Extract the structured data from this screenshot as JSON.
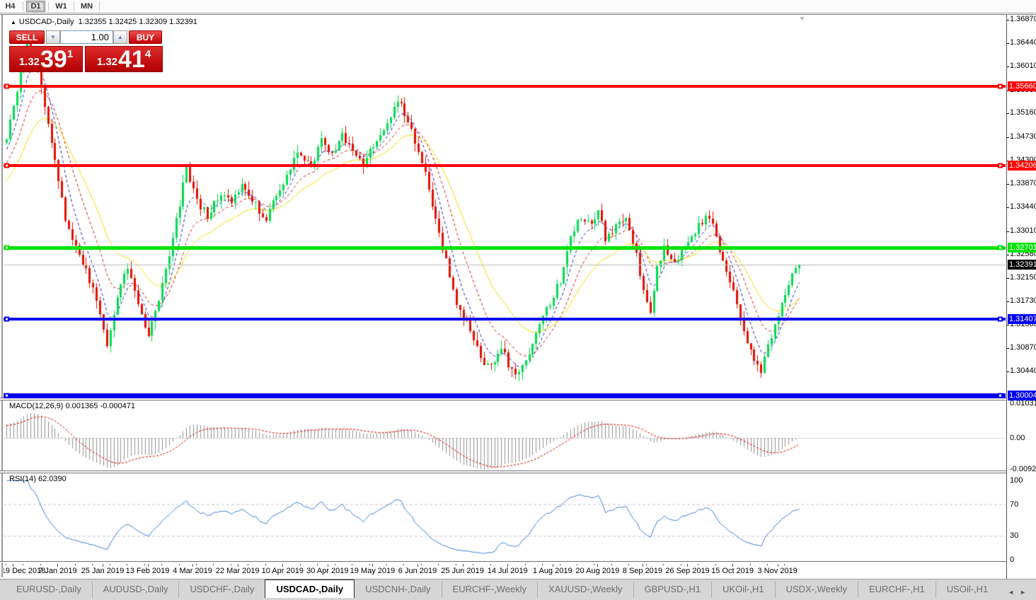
{
  "toolbar": {
    "timeframes": [
      {
        "label": "H4",
        "active": false
      },
      {
        "label": "D1",
        "active": true
      },
      {
        "label": "W1",
        "active": false
      },
      {
        "label": "MN",
        "active": false
      }
    ]
  },
  "window": {
    "title_arrow": "▲",
    "title": "USDCAD-,Daily",
    "ohlc_text": "1.32355 1.32425 1.32309 1.32391",
    "shift_marker": "▼"
  },
  "trade_panel": {
    "sell_label": "SELL",
    "buy_label": "BUY",
    "volume": "1.00",
    "spinner_down": "▼",
    "spinner_up": "▲",
    "sell_price_small": "1.32",
    "sell_price_big": "39",
    "sell_price_sup": "1",
    "buy_price_small": "1.32",
    "buy_price_big": "41",
    "buy_price_sup": "4"
  },
  "chart_data": {
    "type": "candlestick",
    "symbol": "USDCAD",
    "period": "Daily",
    "open": 1.32355,
    "high": 1.32425,
    "low": 1.32309,
    "close": 1.32391,
    "current_price": 1.32391,
    "candle_count": 230,
    "pre_candles": 30,
    "seed": 20191108,
    "noise": 0.0014,
    "wick": 0.0015,
    "bull_color": "#00DC50",
    "bear_color": "#E41000",
    "price_axis": {
      "range_top": 1.3696,
      "range_bottom": 1.29967,
      "ticks": [
        {
          "label": "1.36870",
          "v": 1.3687
        },
        {
          "label": "1.36440",
          "v": 1.3644
        },
        {
          "label": "1.36010",
          "v": 1.3601
        },
        {
          "label": "1.35580",
          "v": 1.3558
        },
        {
          "label": "1.35160",
          "v": 1.3516
        },
        {
          "label": "1.34730",
          "v": 1.3473
        },
        {
          "label": "1.34300",
          "v": 1.343
        },
        {
          "label": "1.33870",
          "v": 1.3387
        },
        {
          "label": "1.33440",
          "v": 1.3344
        },
        {
          "label": "1.33010",
          "v": 1.3301
        },
        {
          "label": "1.32580",
          "v": 1.3258
        },
        {
          "label": "1.32150",
          "v": 1.3215
        },
        {
          "label": "1.31730",
          "v": 1.3173
        },
        {
          "label": "1.31300",
          "v": 1.313
        },
        {
          "label": "1.30870",
          "v": 1.3087
        },
        {
          "label": "1.30440",
          "v": 1.3044
        }
      ]
    },
    "hlines": [
      {
        "label": "1.35660",
        "v": 1.3566,
        "color": "#FF0000",
        "w": 4
      },
      {
        "label": "1.34206",
        "v": 1.34206,
        "color": "#FF0000",
        "w": 4
      },
      {
        "label": "1.32701",
        "v": 1.32701,
        "color": "#00E400",
        "w": 5
      },
      {
        "label": "1.31407",
        "v": 1.31407,
        "color": "#0000F0",
        "w": 4
      },
      {
        "label": "1.30004",
        "v": 1.30004,
        "color": "#0000F0",
        "w": 7
      }
    ],
    "current_line": {
      "label": "1.32391",
      "v": 1.32391,
      "color": "#BDBDBD",
      "badge": "#000000"
    },
    "ma_lines": [
      {
        "period": 6,
        "color": "#2020C8",
        "dash": [
          4,
          3
        ]
      },
      {
        "period": 13,
        "color": "#D01818",
        "dash": [
          4,
          3
        ]
      },
      {
        "period": 24,
        "color": "#F2DC00",
        "dash": []
      }
    ],
    "macd": {
      "label": "MACD(12,26,9) 0.001365 -0.000471",
      "fast": 12,
      "slow": 26,
      "signal_period": 9,
      "bar_color": "#909090",
      "signal_color": "#E00000",
      "axis": [
        {
          "label": "0.010311",
          "v": 0.010311
        },
        {
          "label": "0.00",
          "v": 0
        },
        {
          "label": "-0.009203",
          "v": -0.009203
        }
      ]
    },
    "rsi": {
      "label": "RSI(14) 62.0390",
      "period": 14,
      "value": 62.039,
      "color": "#3A7EDC",
      "levels": [
        70,
        30
      ],
      "axis": [
        {
          "label": "100",
          "v": 100
        },
        {
          "label": "70",
          "v": 70
        },
        {
          "label": "30",
          "v": 30
        },
        {
          "label": "0",
          "v": 0
        }
      ]
    },
    "dates": [
      {
        "label": "19 Dec 2018",
        "i": 2
      },
      {
        "label": "7 Jan 2019",
        "i": 15
      },
      {
        "label": "25 Jan 2019",
        "i": 28
      },
      {
        "label": "13 Feb 2019",
        "i": 41
      },
      {
        "label": "4 Mar 2019",
        "i": 54
      },
      {
        "label": "22 Mar 2019",
        "i": 67
      },
      {
        "label": "10 Apr 2019",
        "i": 80
      },
      {
        "label": "30 Apr 2019",
        "i": 93
      },
      {
        "label": "19 May 2019",
        "i": 106
      },
      {
        "label": "6 Jun 2019",
        "i": 119
      },
      {
        "label": "25 Jun 2019",
        "i": 132
      },
      {
        "label": "14 Jul 2019",
        "i": 145
      },
      {
        "label": "1 Aug 2019",
        "i": 158
      },
      {
        "label": "20 Aug 2019",
        "i": 171
      },
      {
        "label": "8 Sep 2019",
        "i": 184
      },
      {
        "label": "26 Sep 2019",
        "i": 197
      },
      {
        "label": "15 Oct 2019",
        "i": 210
      },
      {
        "label": "3 Nov 2019",
        "i": 223
      }
    ],
    "close_path": [
      [
        0,
        1.347
      ],
      [
        3,
        1.356
      ],
      [
        6,
        1.365
      ],
      [
        9,
        1.36
      ],
      [
        13,
        1.3465
      ],
      [
        17,
        1.332
      ],
      [
        21,
        1.326
      ],
      [
        26,
        1.318
      ],
      [
        29,
        1.3092
      ],
      [
        32,
        1.318
      ],
      [
        35,
        1.3235
      ],
      [
        39,
        1.315
      ],
      [
        41,
        1.3112
      ],
      [
        44,
        1.3175
      ],
      [
        48,
        1.329
      ],
      [
        52,
        1.3415
      ],
      [
        55,
        1.3355
      ],
      [
        58,
        1.333
      ],
      [
        62,
        1.3372
      ],
      [
        65,
        1.3352
      ],
      [
        68,
        1.339
      ],
      [
        72,
        1.3348
      ],
      [
        75,
        1.3322
      ],
      [
        78,
        1.3365
      ],
      [
        81,
        1.34
      ],
      [
        84,
        1.3442
      ],
      [
        88,
        1.342
      ],
      [
        91,
        1.3468
      ],
      [
        94,
        1.344
      ],
      [
        97,
        1.3478
      ],
      [
        100,
        1.3442
      ],
      [
        103,
        1.342
      ],
      [
        106,
        1.3458
      ],
      [
        110,
        1.3492
      ],
      [
        113,
        1.3542
      ],
      [
        116,
        1.3498
      ],
      [
        119,
        1.3448
      ],
      [
        121,
        1.3408
      ],
      [
        124,
        1.3318
      ],
      [
        127,
        1.3248
      ],
      [
        130,
        1.3168
      ],
      [
        134,
        1.3122
      ],
      [
        137,
        1.3068
      ],
      [
        140,
        1.3052
      ],
      [
        143,
        1.3092
      ],
      [
        145,
        1.3058
      ],
      [
        147,
        1.3034
      ],
      [
        150,
        1.3068
      ],
      [
        153,
        1.3108
      ],
      [
        156,
        1.3158
      ],
      [
        160,
        1.3212
      ],
      [
        163,
        1.3288
      ],
      [
        166,
        1.3328
      ],
      [
        169,
        1.3312
      ],
      [
        171,
        1.3338
      ],
      [
        173,
        1.3288
      ],
      [
        176,
        1.3308
      ],
      [
        179,
        1.3328
      ],
      [
        182,
        1.3258
      ],
      [
        184,
        1.3192
      ],
      [
        186,
        1.3155
      ],
      [
        188,
        1.3238
      ],
      [
        190,
        1.3268
      ],
      [
        193,
        1.3238
      ],
      [
        196,
        1.3278
      ],
      [
        199,
        1.3302
      ],
      [
        202,
        1.3328
      ],
      [
        204,
        1.3312
      ],
      [
        206,
        1.3268
      ],
      [
        208,
        1.3222
      ],
      [
        210,
        1.3188
      ],
      [
        212,
        1.3138
      ],
      [
        214,
        1.3092
      ],
      [
        216,
        1.3068
      ],
      [
        218,
        1.3046
      ],
      [
        220,
        1.3088
      ],
      [
        222,
        1.3128
      ],
      [
        224,
        1.3172
      ],
      [
        226,
        1.3208
      ],
      [
        228,
        1.3232
      ],
      [
        229,
        1.32391
      ]
    ]
  },
  "tabs": {
    "items": [
      {
        "label": "EURUSD-,Daily",
        "active": false
      },
      {
        "label": "AUDUSD-,Daily",
        "active": false
      },
      {
        "label": "USDCHF-,Daily",
        "active": false
      },
      {
        "label": "USDCAD-,Daily",
        "active": true
      },
      {
        "label": "USDCNH-,Daily",
        "active": false
      },
      {
        "label": "EURCHF-,Weekly",
        "active": false
      },
      {
        "label": "XAUUSD-,Weekly",
        "active": false
      },
      {
        "label": "GBPUSD-,H1",
        "active": false
      },
      {
        "label": "UKOil-,H1",
        "active": false
      },
      {
        "label": "USDX-,Weekly",
        "active": false
      },
      {
        "label": "EURCHF-,H1",
        "active": false
      },
      {
        "label": "USOil-,H1",
        "active": false
      }
    ],
    "scroll_left": "◄",
    "scroll_right": "►"
  }
}
